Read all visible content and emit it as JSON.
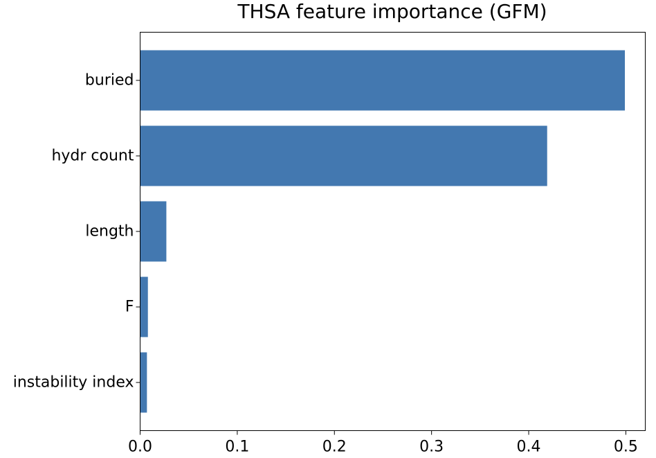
{
  "chart_data": {
    "type": "bar",
    "orientation": "horizontal",
    "title": "THSA feature importance (GFM)",
    "xlabel": "",
    "ylabel": "",
    "categories": [
      "buried",
      "hydr count",
      "length",
      "F",
      "instability index"
    ],
    "values": [
      0.499,
      0.419,
      0.027,
      0.008,
      0.007
    ],
    "xlim": [
      0.0,
      0.52
    ],
    "xticks": [
      0.0,
      0.1,
      0.2,
      0.3,
      0.4,
      0.5
    ],
    "xtick_labels": [
      "0.0",
      "0.1",
      "0.2",
      "0.3",
      "0.4",
      "0.5"
    ],
    "bar_color": "#4378b0",
    "grid": false,
    "legend": "none"
  }
}
